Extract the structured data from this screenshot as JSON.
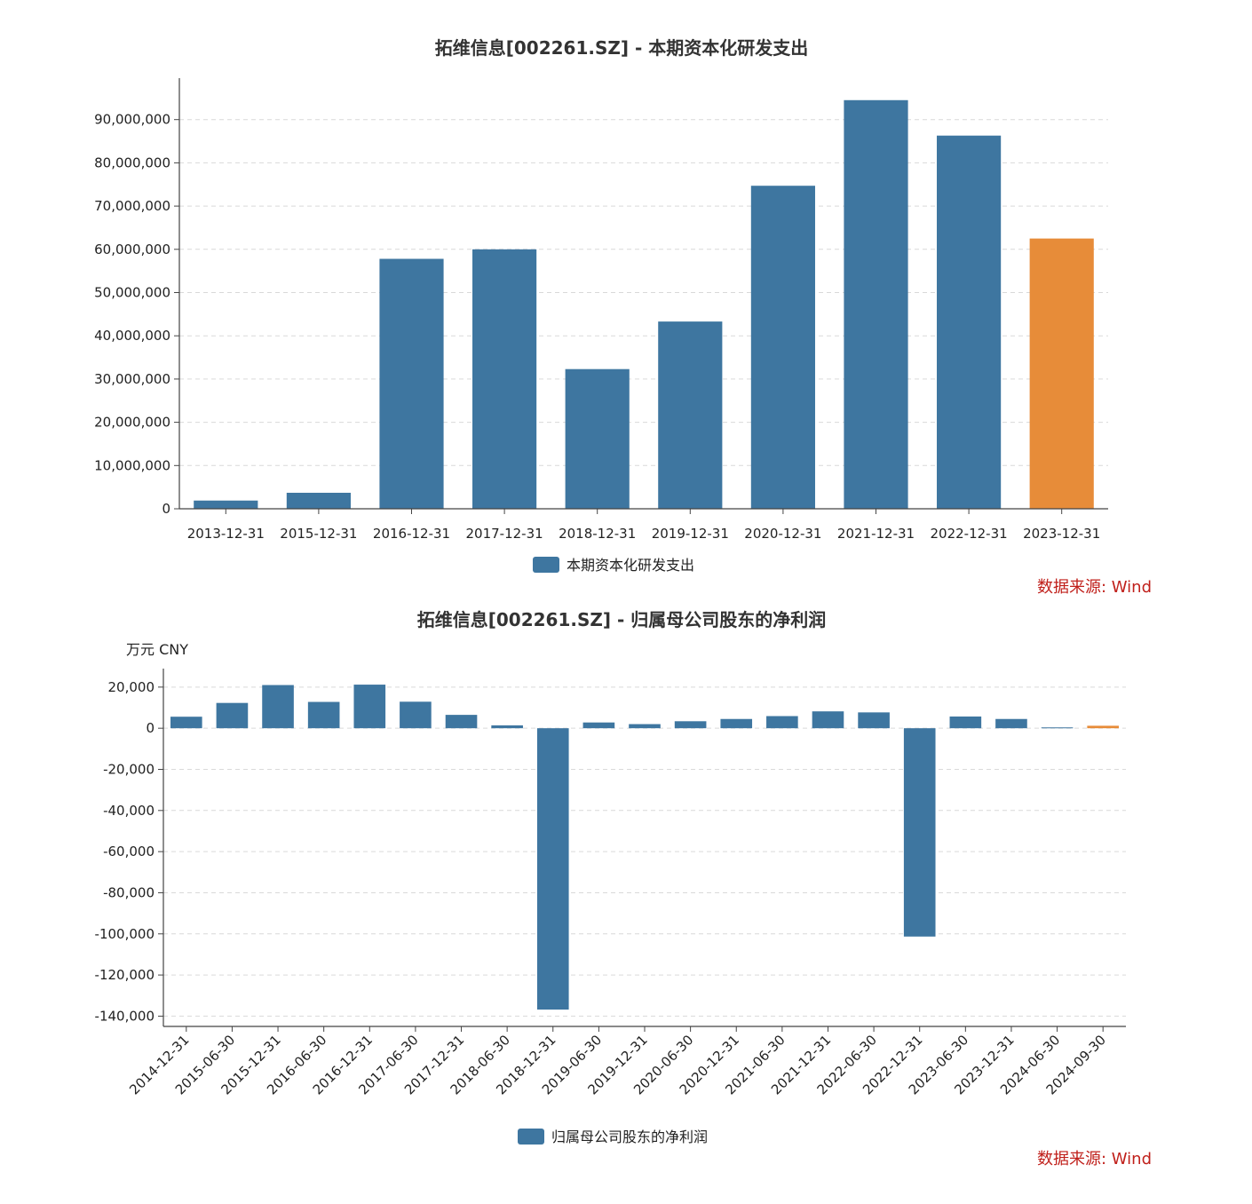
{
  "colors": {
    "bar": "#3e76a0",
    "highlight": "#e78c39",
    "grid": "#d9d9d9",
    "axis": "#444444",
    "source": "#c0201b"
  },
  "chart_data": [
    {
      "type": "bar",
      "title": "拓维信息[002261.SZ] - 本期资本化研发支出",
      "categories": [
        "2013-12-31",
        "2015-12-31",
        "2016-12-31",
        "2017-12-31",
        "2018-12-31",
        "2019-12-31",
        "2020-12-31",
        "2021-12-31",
        "2022-12-31",
        "2023-12-31"
      ],
      "values": [
        1900000,
        3700000,
        57800000,
        60000000,
        32300000,
        43300000,
        74700000,
        94500000,
        86300000,
        62500000
      ],
      "highlight_index": 9,
      "ylim": [
        0,
        100000000
      ],
      "yticks": [
        0,
        10000000,
        20000000,
        30000000,
        40000000,
        50000000,
        60000000,
        70000000,
        80000000,
        90000000
      ],
      "ytick_labels": [
        "0",
        "10,000,000",
        "20,000,000",
        "30,000,000",
        "40,000,000",
        "50,000,000",
        "60,000,000",
        "70,000,000",
        "80,000,000",
        "90,000,000"
      ],
      "legend": "本期资本化研发支出",
      "source": "数据来源: Wind",
      "grid": true
    },
    {
      "type": "bar",
      "title": "拓维信息[002261.SZ] - 归属母公司股东的净利润",
      "unit_label": "万元  CNY",
      "categories": [
        "2014-12-31",
        "2015-06-30",
        "2015-12-31",
        "2016-06-30",
        "2016-12-31",
        "2017-06-30",
        "2017-12-31",
        "2018-06-30",
        "2018-12-31",
        "2019-06-30",
        "2019-12-31",
        "2020-06-30",
        "2020-12-31",
        "2021-06-30",
        "2021-12-31",
        "2022-06-30",
        "2022-12-31",
        "2023-06-30",
        "2023-12-31",
        "2024-06-30",
        "2024-09-30"
      ],
      "values": [
        5600,
        12300,
        21000,
        12800,
        21200,
        12900,
        6500,
        1400,
        -136800,
        2800,
        2000,
        3400,
        4500,
        5900,
        8200,
        7700,
        -101300,
        5700,
        4500,
        400,
        1200
      ],
      "highlight_index": 20,
      "ylim": [
        -145000,
        29000
      ],
      "yticks": [
        20000,
        0,
        -20000,
        -40000,
        -60000,
        -80000,
        -100000,
        -120000,
        -140000
      ],
      "ytick_labels": [
        "20,000",
        "0",
        "-20,000",
        "-40,000",
        "-60,000",
        "-80,000",
        "-100,000",
        "-120,000",
        "-140,000"
      ],
      "legend": "归属母公司股东的净利润",
      "source": "数据来源: Wind",
      "grid": true
    }
  ]
}
